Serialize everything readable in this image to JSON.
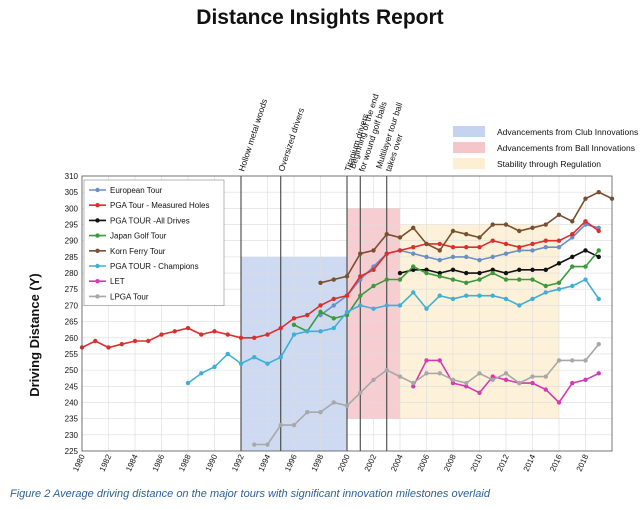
{
  "title": "Distance Insights Report",
  "caption": "Figure 2 Average driving distance on the major tours with significant innovation milestones overlaid",
  "chart_data": {
    "type": "line",
    "xlabel": "",
    "ylabel": "Driving Distance (Y)",
    "xlim": [
      1980,
      2020
    ],
    "ylim": [
      225,
      310
    ],
    "x_ticks": [
      1980,
      1982,
      1984,
      1986,
      1988,
      1990,
      1992,
      1994,
      1996,
      1998,
      2000,
      2002,
      2004,
      2006,
      2008,
      2010,
      2012,
      2014,
      2016,
      2018
    ],
    "y_ticks": [
      225,
      230,
      235,
      240,
      245,
      250,
      255,
      260,
      265,
      270,
      275,
      280,
      285,
      290,
      295,
      300,
      305,
      310
    ],
    "grid": true,
    "legend_position": "top-left",
    "regions": [
      {
        "name": "Advancements from Club Innovations",
        "x0": 1992,
        "x1": 2000,
        "y0": 225,
        "y1": 285,
        "color": "#c5d3f0"
      },
      {
        "name": "Advancements from Ball Innovations",
        "x0": 2000,
        "x1": 2004,
        "y0": 235,
        "y1": 300,
        "color": "#f5c6c9"
      },
      {
        "name": "Stability through Regulation",
        "x0": 2004,
        "x1": 2016,
        "y0": 235,
        "y1": 295,
        "color": "#fdf0d2"
      }
    ],
    "milestones": [
      {
        "x": 1992,
        "label": "Hollow metal woods"
      },
      {
        "x": 1995,
        "label": "Oversized drivers"
      },
      {
        "x": 2000,
        "label": "Titanium drivers"
      },
      {
        "x": 2001,
        "label": "Beginning of the end for wound golf balls"
      },
      {
        "x": 2003,
        "label": "Multilayer tour ball takes over"
      }
    ],
    "series": [
      {
        "name": "European Tour",
        "color": "#6a8fc8",
        "points": [
          [
            1998,
            267
          ],
          [
            1999,
            270
          ],
          [
            2000,
            273
          ],
          [
            2001,
            278
          ],
          [
            2002,
            282
          ],
          [
            2003,
            286
          ],
          [
            2004,
            287
          ],
          [
            2005,
            286
          ],
          [
            2006,
            285
          ],
          [
            2007,
            284
          ],
          [
            2008,
            285
          ],
          [
            2009,
            285
          ],
          [
            2010,
            284
          ],
          [
            2011,
            285
          ],
          [
            2012,
            286
          ],
          [
            2013,
            287
          ],
          [
            2014,
            287
          ],
          [
            2015,
            288
          ],
          [
            2016,
            288
          ],
          [
            2017,
            291
          ],
          [
            2018,
            295
          ],
          [
            2019,
            294
          ]
        ]
      },
      {
        "name": "PGA Tour - Measured Holes",
        "color": "#d9302f",
        "points": [
          [
            1980,
            257
          ],
          [
            1981,
            259
          ],
          [
            1982,
            257
          ],
          [
            1983,
            258
          ],
          [
            1984,
            259
          ],
          [
            1985,
            259
          ],
          [
            1986,
            261
          ],
          [
            1987,
            262
          ],
          [
            1988,
            263
          ],
          [
            1989,
            261
          ],
          [
            1990,
            262
          ],
          [
            1991,
            261
          ],
          [
            1992,
            260
          ],
          [
            1993,
            260
          ],
          [
            1994,
            261
          ],
          [
            1995,
            263
          ],
          [
            1996,
            266
          ],
          [
            1997,
            267
          ],
          [
            1998,
            270
          ],
          [
            1999,
            272
          ],
          [
            2000,
            273
          ],
          [
            2001,
            279
          ],
          [
            2002,
            281
          ],
          [
            2003,
            286
          ],
          [
            2004,
            287
          ],
          [
            2005,
            288
          ],
          [
            2006,
            289
          ],
          [
            2007,
            289
          ],
          [
            2008,
            288
          ],
          [
            2009,
            288
          ],
          [
            2010,
            288
          ],
          [
            2011,
            290
          ],
          [
            2012,
            289
          ],
          [
            2013,
            288
          ],
          [
            2014,
            289
          ],
          [
            2015,
            290
          ],
          [
            2016,
            290
          ],
          [
            2017,
            292
          ],
          [
            2018,
            296
          ],
          [
            2019,
            293
          ]
        ]
      },
      {
        "name": "PGA TOUR -All Drives",
        "color": "#111111",
        "points": [
          [
            2004,
            280
          ],
          [
            2005,
            281
          ],
          [
            2006,
            281
          ],
          [
            2007,
            280
          ],
          [
            2008,
            281
          ],
          [
            2009,
            280
          ],
          [
            2010,
            280
          ],
          [
            2011,
            281
          ],
          [
            2012,
            280
          ],
          [
            2013,
            281
          ],
          [
            2014,
            281
          ],
          [
            2015,
            281
          ],
          [
            2016,
            283
          ],
          [
            2017,
            285
          ],
          [
            2018,
            287
          ],
          [
            2019,
            285
          ]
        ]
      },
      {
        "name": "Japan Golf Tour",
        "color": "#3c9a3c",
        "points": [
          [
            1996,
            264
          ],
          [
            1997,
            262
          ],
          [
            1998,
            268
          ],
          [
            1999,
            266
          ],
          [
            2000,
            267
          ],
          [
            2001,
            273
          ],
          [
            2002,
            276
          ],
          [
            2003,
            278
          ],
          [
            2004,
            278
          ],
          [
            2005,
            282
          ],
          [
            2006,
            280
          ],
          [
            2007,
            279
          ],
          [
            2008,
            278
          ],
          [
            2009,
            277
          ],
          [
            2010,
            278
          ],
          [
            2011,
            280
          ],
          [
            2012,
            278
          ],
          [
            2013,
            278
          ],
          [
            2014,
            278
          ],
          [
            2015,
            276
          ],
          [
            2016,
            277
          ],
          [
            2017,
            282
          ],
          [
            2018,
            282
          ],
          [
            2019,
            287
          ]
        ]
      },
      {
        "name": "Korn Ferry Tour",
        "color": "#7a4f2f",
        "points": [
          [
            1998,
            277
          ],
          [
            1999,
            278
          ],
          [
            2000,
            279
          ],
          [
            2001,
            286
          ],
          [
            2002,
            287
          ],
          [
            2003,
            292
          ],
          [
            2004,
            291
          ],
          [
            2005,
            294
          ],
          [
            2006,
            289
          ],
          [
            2007,
            287
          ],
          [
            2008,
            293
          ],
          [
            2009,
            292
          ],
          [
            2010,
            291
          ],
          [
            2011,
            295
          ],
          [
            2012,
            295
          ],
          [
            2013,
            293
          ],
          [
            2014,
            294
          ],
          [
            2015,
            295
          ],
          [
            2016,
            298
          ],
          [
            2017,
            296
          ],
          [
            2018,
            303
          ],
          [
            2019,
            305
          ],
          [
            2020,
            303
          ]
        ]
      },
      {
        "name": "PGA TOUR - Champions",
        "color": "#3fb0d4",
        "points": [
          [
            1988,
            246
          ],
          [
            1989,
            249
          ],
          [
            1990,
            251
          ],
          [
            1991,
            255
          ],
          [
            1992,
            252
          ],
          [
            1993,
            254
          ],
          [
            1994,
            252
          ],
          [
            1995,
            254
          ],
          [
            1996,
            261
          ],
          [
            1997,
            262
          ],
          [
            1998,
            262
          ],
          [
            1999,
            263
          ],
          [
            2000,
            268
          ],
          [
            2001,
            270
          ],
          [
            2002,
            269
          ],
          [
            2003,
            270
          ],
          [
            2004,
            270
          ],
          [
            2005,
            274
          ],
          [
            2006,
            269
          ],
          [
            2007,
            273
          ],
          [
            2008,
            272
          ],
          [
            2009,
            273
          ],
          [
            2010,
            273
          ],
          [
            2011,
            273
          ],
          [
            2012,
            272
          ],
          [
            2013,
            270
          ],
          [
            2014,
            272
          ],
          [
            2015,
            274
          ],
          [
            2016,
            275
          ],
          [
            2017,
            276
          ],
          [
            2018,
            278
          ],
          [
            2019,
            272
          ]
        ]
      },
      {
        "name": "LET",
        "color": "#d33bb3",
        "points": [
          [
            2005,
            245
          ],
          [
            2006,
            253
          ],
          [
            2007,
            253
          ],
          [
            2008,
            246
          ],
          [
            2009,
            245
          ],
          [
            2010,
            243
          ],
          [
            2011,
            248
          ],
          [
            2012,
            247
          ],
          [
            2013,
            246
          ],
          [
            2014,
            246
          ],
          [
            2015,
            244
          ],
          [
            2016,
            240
          ],
          [
            2017,
            246
          ],
          [
            2018,
            247
          ],
          [
            2019,
            249
          ]
        ]
      },
      {
        "name": "LPGA Tour",
        "color": "#a8a8a8",
        "points": [
          [
            1993,
            227
          ],
          [
            1994,
            227
          ],
          [
            1995,
            233
          ],
          [
            1996,
            233
          ],
          [
            1997,
            237
          ],
          [
            1998,
            237
          ],
          [
            1999,
            240
          ],
          [
            2000,
            239
          ],
          [
            2001,
            243
          ],
          [
            2002,
            247
          ],
          [
            2003,
            250
          ],
          [
            2004,
            248
          ],
          [
            2005,
            246
          ],
          [
            2006,
            249
          ],
          [
            2007,
            249
          ],
          [
            2008,
            247
          ],
          [
            2009,
            246
          ],
          [
            2010,
            249
          ],
          [
            2011,
            247
          ],
          [
            2012,
            249
          ],
          [
            2013,
            246
          ],
          [
            2014,
            248
          ],
          [
            2015,
            248
          ],
          [
            2016,
            253
          ],
          [
            2017,
            253
          ],
          [
            2018,
            253
          ],
          [
            2019,
            258
          ]
        ]
      }
    ]
  }
}
